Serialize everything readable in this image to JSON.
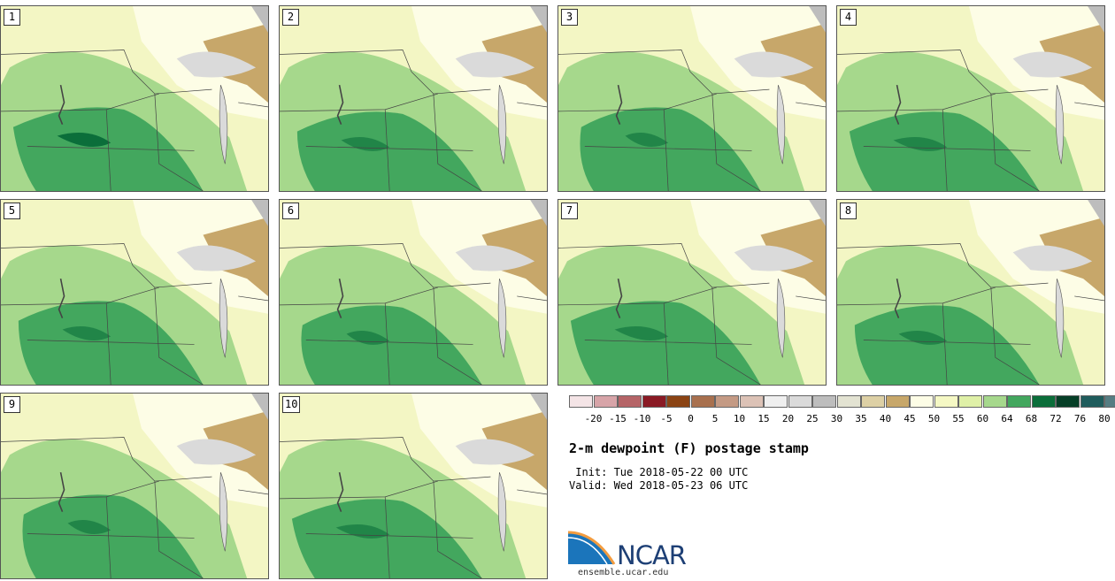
{
  "stamps": [
    {
      "label": "1",
      "variant": 0
    },
    {
      "label": "2",
      "variant": 1
    },
    {
      "label": "3",
      "variant": 2
    },
    {
      "label": "4",
      "variant": 3
    },
    {
      "label": "5",
      "variant": 4
    },
    {
      "label": "6",
      "variant": 5
    },
    {
      "label": "7",
      "variant": 6
    },
    {
      "label": "8",
      "variant": 7
    },
    {
      "label": "9",
      "variant": 8
    },
    {
      "label": "10",
      "variant": 9
    }
  ],
  "colorbar": {
    "ticks": [
      "-20",
      "-15",
      "-10",
      "-5",
      "0",
      "5",
      "10",
      "15",
      "20",
      "25",
      "30",
      "35",
      "40",
      "45",
      "50",
      "55",
      "60",
      "64",
      "68",
      "72",
      "76",
      "80"
    ],
    "colors": [
      "#f4e4e6",
      "#d7a4a8",
      "#b56467",
      "#8a1a24",
      "#8b4414",
      "#a8704e",
      "#c49a84",
      "#dcc2b6",
      "#efefef",
      "#dadada",
      "#bdbdbd",
      "#e3e3d2",
      "#ddd0a5",
      "#c7a76a",
      "#fdfde6",
      "#f5f8c4",
      "#dff0a7",
      "#a6d88c",
      "#43a75e",
      "#0b6e3a",
      "#063f27",
      "#1f5c5c",
      "#567d82"
    ]
  },
  "title": "2-m dewpoint (F) postage stamp",
  "init": " Init: Tue 2018-05-22 00 UTC",
  "valid": "Valid: Wed 2018-05-23 06 UTC",
  "logo": {
    "text": "NCAR",
    "url": "ensemble.ucar.edu"
  },
  "colors": {
    "low_moist": "#f3f6c4",
    "mid_moist": "#a6d88c",
    "high_moist": "#43a75e",
    "very_high": "#0b6e3a",
    "dry_tan": "#c7a76a",
    "lake_gray": "#dadada"
  }
}
